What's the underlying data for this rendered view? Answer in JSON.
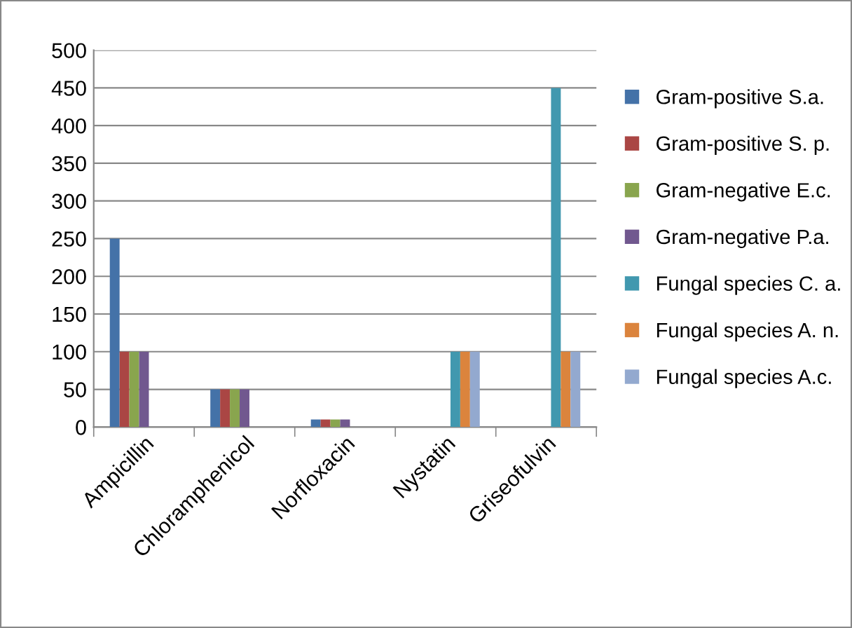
{
  "chart_data": {
    "type": "bar",
    "categories": [
      "Ampicillin",
      "Chloramphenicol",
      "Norfloxacin",
      "Nystatin",
      "Griseofulvin"
    ],
    "series": [
      {
        "name": "Gram-positive S.a.",
        "color": "#4472a8",
        "values": [
          250,
          50,
          10,
          null,
          null
        ]
      },
      {
        "name": "Gram-positive S. p.",
        "color": "#aa4644",
        "values": [
          100,
          50,
          10,
          null,
          null
        ]
      },
      {
        "name": "Gram-negative E.c.",
        "color": "#89a54e",
        "values": [
          100,
          50,
          10,
          null,
          null
        ]
      },
      {
        "name": "Gram-negative P.a.",
        "color": "#71588f",
        "values": [
          100,
          50,
          10,
          null,
          null
        ]
      },
      {
        "name": "Fungal species C. a.",
        "color": "#4198af",
        "values": [
          null,
          null,
          null,
          100,
          450
        ]
      },
      {
        "name": "Fungal species A. n.",
        "color": "#db843d",
        "values": [
          null,
          null,
          null,
          100,
          100
        ]
      },
      {
        "name": "Fungal species A.c.",
        "color": "#93a9cf",
        "values": [
          null,
          null,
          null,
          100,
          100
        ]
      }
    ],
    "ylim": [
      0,
      500
    ],
    "yticks": [
      0,
      50,
      100,
      150,
      200,
      250,
      300,
      350,
      400,
      450,
      500
    ],
    "grid": "y",
    "legend": "right"
  }
}
